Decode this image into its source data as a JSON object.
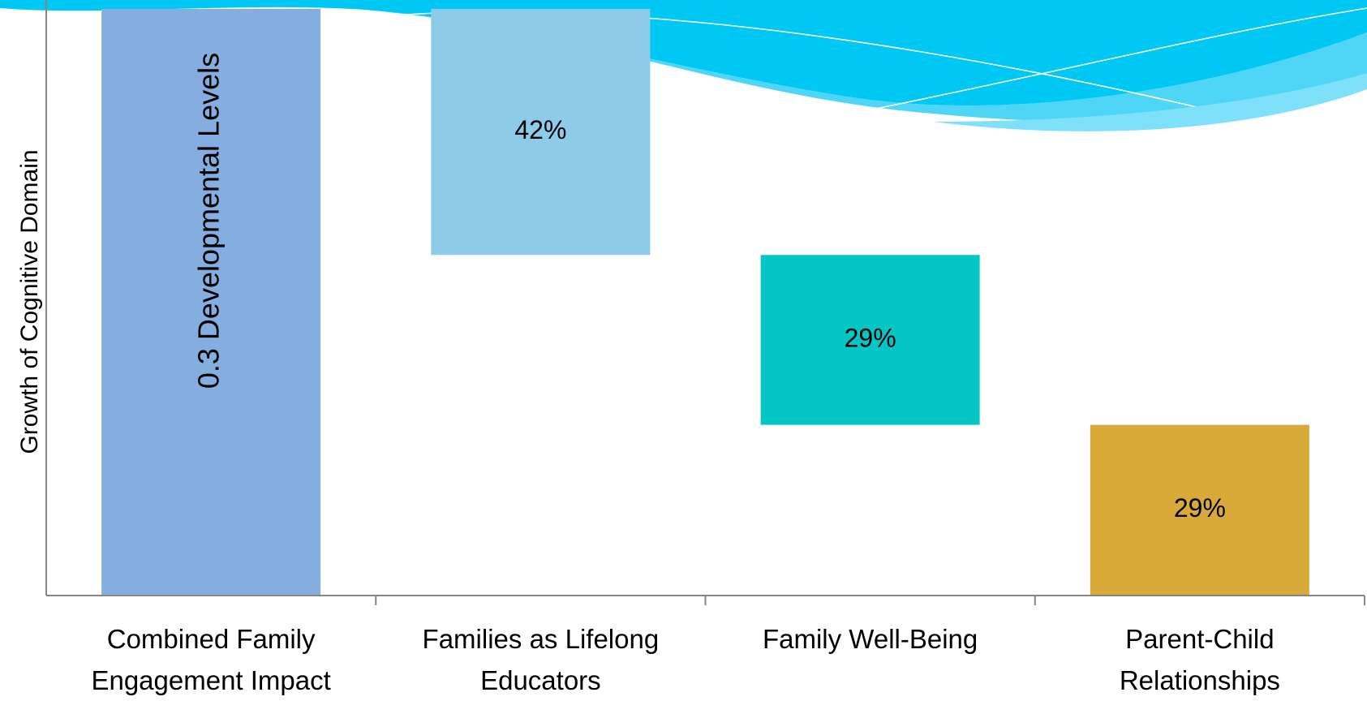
{
  "chart_data": {
    "type": "waterfall",
    "y_axis_title": "Growth of Cognitive Domain",
    "total_category": "Combined Family Engagement Impact",
    "total_label": "0.3 Developmental Levels",
    "total_color": "#84aee0",
    "categories": [
      "Families as Lifelong Educators",
      "Family Well-Being",
      "Parent-Child Relationships"
    ],
    "values": [
      42,
      29,
      29
    ],
    "value_labels": [
      "42%",
      "29%",
      "29%"
    ],
    "colors": [
      "#8ecbe8",
      "#05c6c4",
      "#d9a93a"
    ],
    "ylim": [
      0,
      100
    ]
  }
}
